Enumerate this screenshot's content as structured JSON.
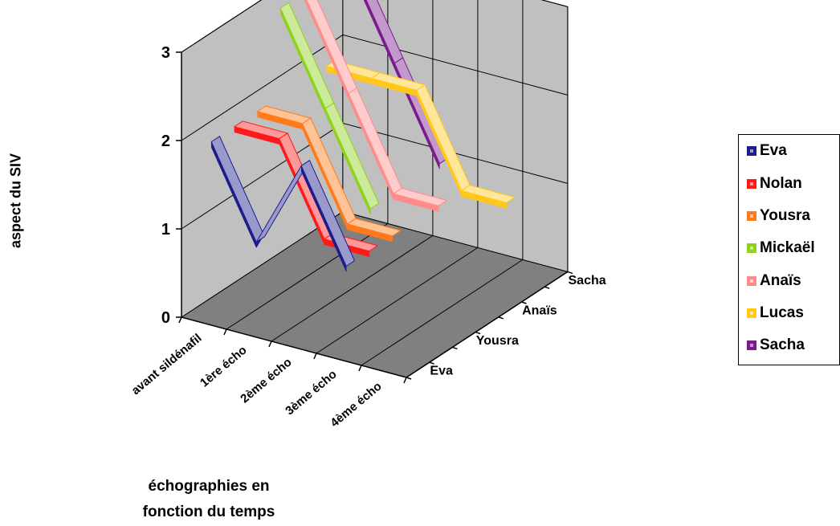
{
  "chart_data": {
    "type": "line",
    "subtype": "3d-line",
    "xlabel_lines": [
      "échographies en",
      "fonction du temps"
    ],
    "ylabel": "aspect du SIV",
    "categories": [
      "avant sildénafil",
      "1ère écho",
      "2ème écho",
      "3ème écho",
      "4ème écho"
    ],
    "yticks": [
      "0",
      "1",
      "2",
      "3"
    ],
    "ylim": [
      0,
      3
    ],
    "depth_ticks": [
      "Eva",
      "Yousra",
      "Anaïs",
      "Sacha"
    ],
    "grid": true,
    "legend_position": "right",
    "series": [
      {
        "name": "Eva",
        "color": "#1c1c8c",
        "values": [
          2,
          1,
          2,
          1,
          null
        ]
      },
      {
        "name": "Nolan",
        "color": "#ff1a1a",
        "values": [
          2,
          2,
          1,
          1,
          null
        ]
      },
      {
        "name": "Yousra",
        "color": "#ff7a1a",
        "values": [
          2,
          2,
          1,
          1,
          null
        ]
      },
      {
        "name": "Mickaël",
        "color": "#8ed21e",
        "values": [
          3,
          2,
          1,
          null,
          null
        ]
      },
      {
        "name": "Anaïs",
        "color": "#ff8c8c",
        "values": [
          3,
          2,
          1,
          1,
          null
        ]
      },
      {
        "name": "Lucas",
        "color": "#ffc81a",
        "values": [
          2,
          2,
          2,
          1,
          1
        ]
      },
      {
        "name": "Sacha",
        "color": "#7a1a8c",
        "values": [
          3,
          2,
          1,
          null,
          null
        ]
      }
    ]
  }
}
